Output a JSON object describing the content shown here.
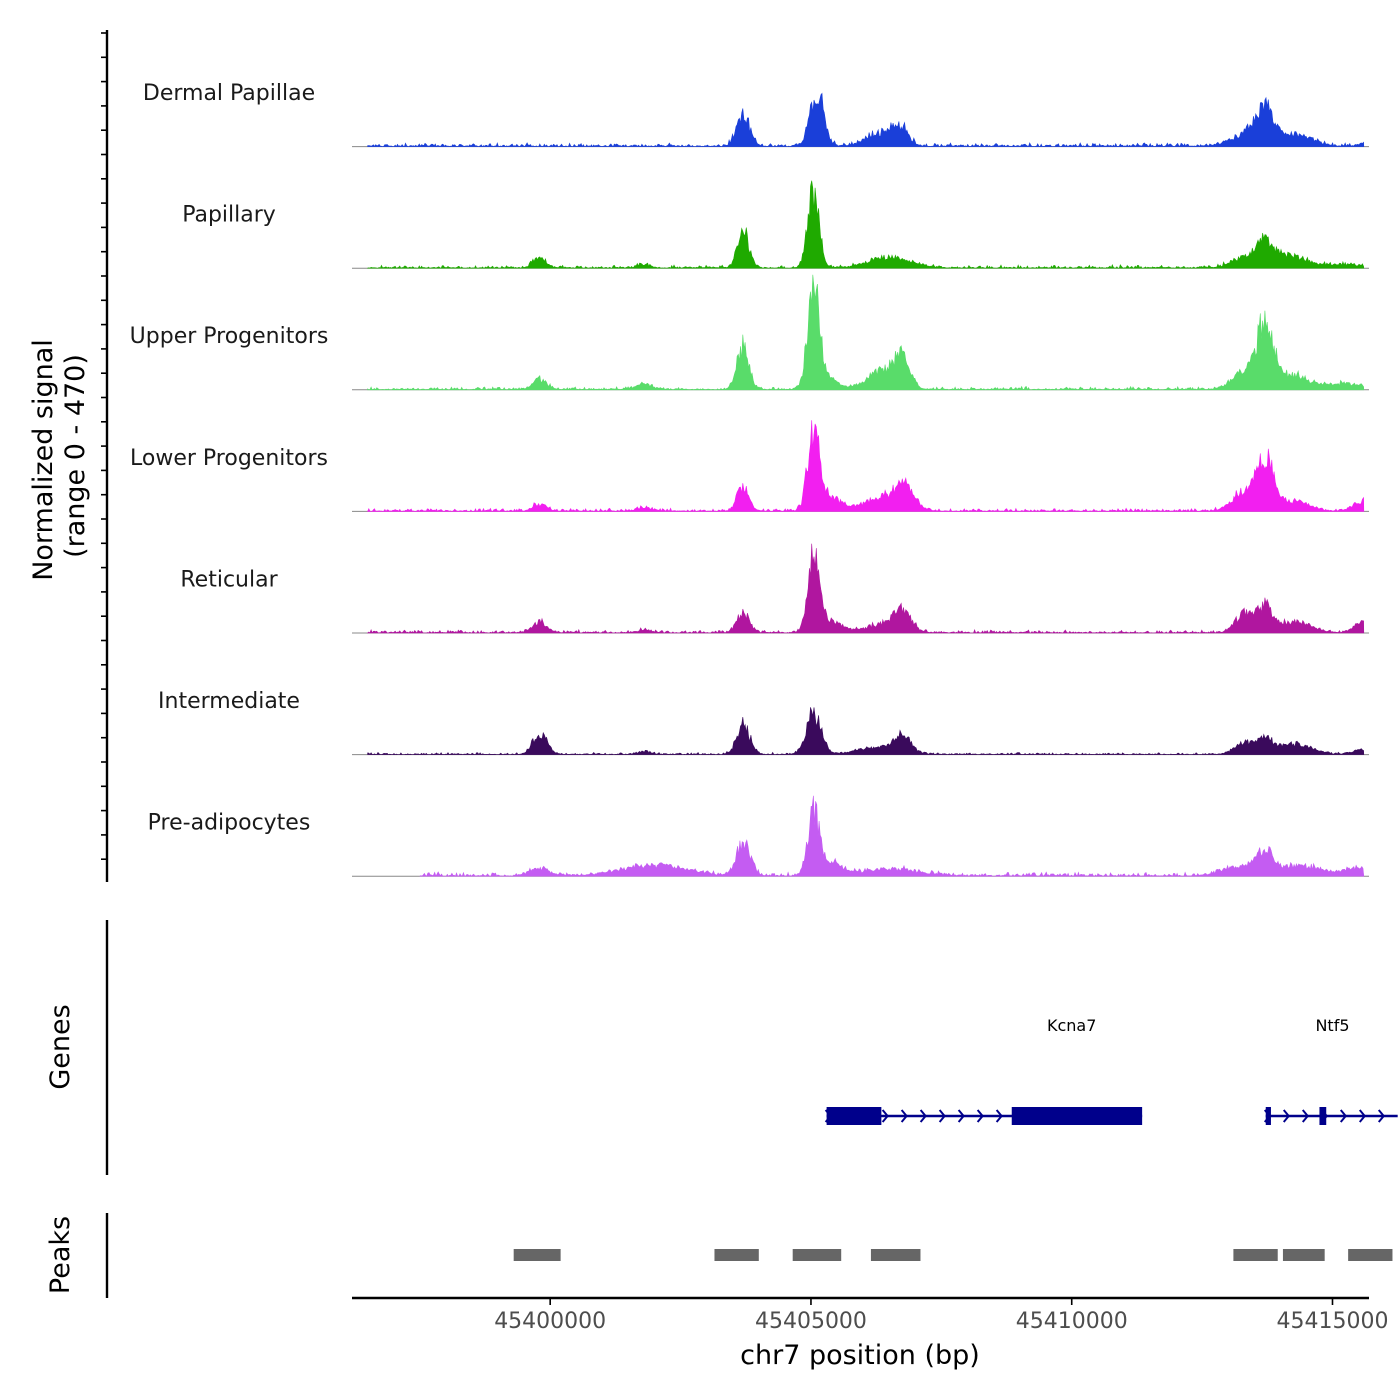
{
  "chart_data": {
    "type": "coverage",
    "ylabel_line1": "Normalized signal",
    "ylabel_line2": "(range 0 - 470)",
    "y_range": [
      0,
      470
    ],
    "xlabel": "chr7 position (bp)",
    "xlim": [
      45396200,
      45415700
    ],
    "x_ticks": [
      {
        "value": 45400000,
        "label": "45400000"
      },
      {
        "value": 45405000,
        "label": "45405000"
      },
      {
        "value": 45410000,
        "label": "45410000"
      },
      {
        "value": 45415000,
        "label": "45415000"
      }
    ],
    "panel_titles": {
      "genes": "Genes",
      "peaks": "Peaks"
    },
    "tracks": [
      {
        "name": "Dermal Papillae",
        "color": "#1a3fd9",
        "peaks": [
          {
            "center": 45403700,
            "height": 0.28,
            "width": 120
          },
          {
            "center": 45405120,
            "height": 0.48,
            "width": 130
          },
          {
            "center": 45406300,
            "height": 0.11,
            "width": 260
          },
          {
            "center": 45406700,
            "height": 0.15,
            "width": 160
          },
          {
            "center": 45413700,
            "height": 0.26,
            "width": 180
          },
          {
            "center": 45413400,
            "height": 0.1,
            "width": 320
          },
          {
            "center": 45414300,
            "height": 0.1,
            "width": 300
          },
          {
            "center": 45415700,
            "height": 0.04,
            "width": 150
          }
        ],
        "noise": 0.035,
        "start": 45396500,
        "end": 45415600
      },
      {
        "name": "Papillary",
        "color": "#1faa00",
        "peaks": [
          {
            "center": 45399800,
            "height": 0.08,
            "width": 130
          },
          {
            "center": 45401800,
            "height": 0.03,
            "width": 120
          },
          {
            "center": 45403700,
            "height": 0.3,
            "width": 110
          },
          {
            "center": 45405050,
            "height": 0.65,
            "width": 110
          },
          {
            "center": 45406500,
            "height": 0.09,
            "width": 400
          },
          {
            "center": 45413700,
            "height": 0.2,
            "width": 170
          },
          {
            "center": 45413300,
            "height": 0.08,
            "width": 250
          },
          {
            "center": 45414200,
            "height": 0.1,
            "width": 300
          },
          {
            "center": 45415200,
            "height": 0.03,
            "width": 350
          }
        ],
        "noise": 0.03,
        "start": 45396500,
        "end": 45415600
      },
      {
        "name": "Upper Progenitors",
        "color": "#59dc6a",
        "peaks": [
          {
            "center": 45399800,
            "height": 0.09,
            "width": 130
          },
          {
            "center": 45401800,
            "height": 0.05,
            "width": 130
          },
          {
            "center": 45403700,
            "height": 0.38,
            "width": 110
          },
          {
            "center": 45405050,
            "height": 0.86,
            "width": 110
          },
          {
            "center": 45405300,
            "height": 0.1,
            "width": 200
          },
          {
            "center": 45406400,
            "height": 0.16,
            "width": 300
          },
          {
            "center": 45406750,
            "height": 0.22,
            "width": 140
          },
          {
            "center": 45413700,
            "height": 0.55,
            "width": 160
          },
          {
            "center": 45413300,
            "height": 0.14,
            "width": 220
          },
          {
            "center": 45414200,
            "height": 0.12,
            "width": 300
          },
          {
            "center": 45415200,
            "height": 0.05,
            "width": 350
          }
        ],
        "noise": 0.03,
        "start": 45396500,
        "end": 45415600
      },
      {
        "name": "Lower Progenitors",
        "color": "#f21ff0",
        "peaks": [
          {
            "center": 45399800,
            "height": 0.06,
            "width": 130
          },
          {
            "center": 45401800,
            "height": 0.03,
            "width": 130
          },
          {
            "center": 45403700,
            "height": 0.22,
            "width": 110
          },
          {
            "center": 45405050,
            "height": 0.68,
            "width": 110
          },
          {
            "center": 45405350,
            "height": 0.12,
            "width": 220
          },
          {
            "center": 45406400,
            "height": 0.12,
            "width": 350
          },
          {
            "center": 45406800,
            "height": 0.18,
            "width": 180
          },
          {
            "center": 45413700,
            "height": 0.43,
            "width": 160
          },
          {
            "center": 45413300,
            "height": 0.15,
            "width": 220
          },
          {
            "center": 45414200,
            "height": 0.09,
            "width": 300
          },
          {
            "center": 45415600,
            "height": 0.08,
            "width": 180
          }
        ],
        "noise": 0.03,
        "start": 45396500,
        "end": 45415600
      },
      {
        "name": "Reticular",
        "color": "#b0169f",
        "peaks": [
          {
            "center": 45399800,
            "height": 0.09,
            "width": 130
          },
          {
            "center": 45401800,
            "height": 0.02,
            "width": 130
          },
          {
            "center": 45403700,
            "height": 0.17,
            "width": 120
          },
          {
            "center": 45405050,
            "height": 0.6,
            "width": 110
          },
          {
            "center": 45405350,
            "height": 0.1,
            "width": 220
          },
          {
            "center": 45406400,
            "height": 0.07,
            "width": 350
          },
          {
            "center": 45406750,
            "height": 0.17,
            "width": 160
          },
          {
            "center": 45413300,
            "height": 0.16,
            "width": 160
          },
          {
            "center": 45413700,
            "height": 0.22,
            "width": 160
          },
          {
            "center": 45414300,
            "height": 0.09,
            "width": 300
          },
          {
            "center": 45415600,
            "height": 0.09,
            "width": 160
          }
        ],
        "noise": 0.03,
        "start": 45396500,
        "end": 45415600
      },
      {
        "name": "Intermediate",
        "color": "#3a0a5c",
        "peaks": [
          {
            "center": 45399800,
            "height": 0.19,
            "width": 130
          },
          {
            "center": 45401800,
            "height": 0.02,
            "width": 130
          },
          {
            "center": 45403700,
            "height": 0.27,
            "width": 120
          },
          {
            "center": 45405050,
            "height": 0.35,
            "width": 140
          },
          {
            "center": 45406300,
            "height": 0.06,
            "width": 400
          },
          {
            "center": 45406750,
            "height": 0.13,
            "width": 160
          },
          {
            "center": 45413300,
            "height": 0.09,
            "width": 180
          },
          {
            "center": 45413700,
            "height": 0.12,
            "width": 160
          },
          {
            "center": 45414300,
            "height": 0.09,
            "width": 300
          },
          {
            "center": 45415600,
            "height": 0.04,
            "width": 200
          }
        ],
        "noise": 0.02,
        "start": 45396500,
        "end": 45415600
      },
      {
        "name": "Pre-adipocytes",
        "color": "#c45cf2",
        "peaks": [
          {
            "center": 45399800,
            "height": 0.06,
            "width": 180
          },
          {
            "center": 45402000,
            "height": 0.09,
            "width": 600
          },
          {
            "center": 45403700,
            "height": 0.27,
            "width": 130
          },
          {
            "center": 45405050,
            "height": 0.52,
            "width": 110
          },
          {
            "center": 45405350,
            "height": 0.1,
            "width": 220
          },
          {
            "center": 45406500,
            "height": 0.06,
            "width": 500
          },
          {
            "center": 45413700,
            "height": 0.2,
            "width": 160
          },
          {
            "center": 45413200,
            "height": 0.08,
            "width": 300
          },
          {
            "center": 45414400,
            "height": 0.08,
            "width": 400
          },
          {
            "center": 45415500,
            "height": 0.06,
            "width": 250
          }
        ],
        "noise": 0.04,
        "start": 45397500,
        "end": 45415600
      }
    ],
    "genes": [
      {
        "name": "Kcna7",
        "strand": "+",
        "start": 45405300,
        "end": 45411350,
        "exons": [
          [
            45405300,
            45406350
          ],
          [
            45408850,
            45411350
          ]
        ],
        "label_pos": 45410000
      },
      {
        "name": "Ntf5",
        "strand": "+",
        "start": 45413720,
        "end": 45416250,
        "exons": [
          [
            45413720,
            45413820
          ],
          [
            45414750,
            45414880
          ]
        ],
        "label_pos": 45415000
      }
    ],
    "peaks_track": [
      [
        45399300,
        45400200
      ],
      [
        45403150,
        45404000
      ],
      [
        45404650,
        45405580
      ],
      [
        45406150,
        45407100
      ],
      [
        45413100,
        45413950
      ],
      [
        45414050,
        45414850
      ],
      [
        45415300,
        45416150
      ]
    ],
    "colors": {
      "gene": "#00008b",
      "peak": "#666666",
      "baseline": "#888888"
    }
  }
}
